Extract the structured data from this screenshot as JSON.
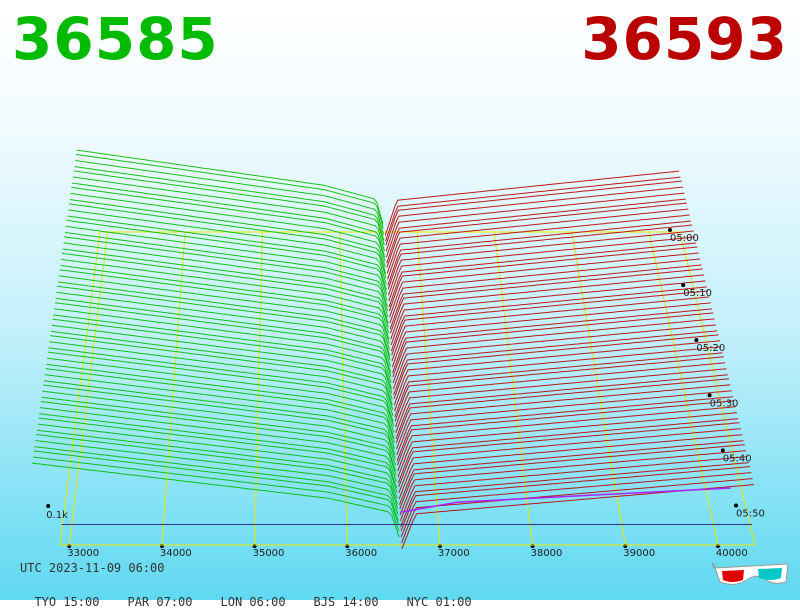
{
  "prices": {
    "bid": "36585",
    "ask": "36593"
  },
  "footer": {
    "utc": "UTC 2023-11-09 06:00",
    "zones": [
      "TYO 15:00",
      "PAR 07:00",
      "LON 06:00",
      "BJS 14:00",
      "NYC 01:00"
    ]
  },
  "colors": {
    "bid": "#00bb00",
    "ask": "#bb0000",
    "grid": "#e8e800",
    "volume_line": "#aa22ff",
    "baseline": "#333388"
  },
  "icon": "3d-glasses-icon",
  "chart_data": {
    "type": "line",
    "view": "3d-order-book-depth",
    "x_ticks": [
      33000,
      34000,
      35000,
      36000,
      37000,
      38000,
      39000,
      40000
    ],
    "x_tick_labels": [
      "33000",
      "34000",
      "35000",
      "36000",
      "37000",
      "38000",
      "39000",
      "40000"
    ],
    "time_ticks": [
      "05:00",
      "05:10",
      "05:20",
      "05:30",
      "05:40",
      "05:50"
    ],
    "depth_label": "0.1k",
    "mid_price": 36589,
    "series": [
      {
        "side": "bid",
        "color": "#00bb00",
        "price_range": [
          32600,
          36589
        ]
      },
      {
        "side": "ask",
        "color": "#bb0000",
        "price_range": [
          36589,
          40400
        ]
      }
    ]
  }
}
